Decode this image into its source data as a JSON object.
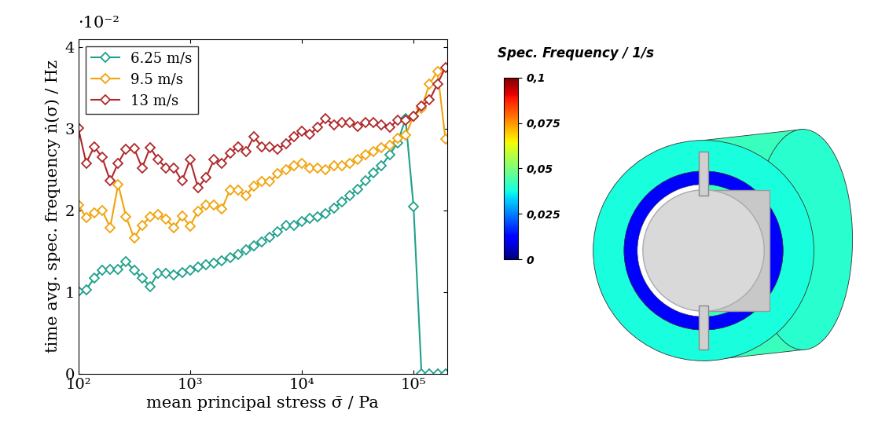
{
  "chart_data": [
    {
      "type": "line",
      "x_label": "mean principal stress σ̄ / Pa",
      "y_label": "time avg. spec. frequency ṅ(σ) / Hz",
      "annotations": [
        "·10⁻²"
      ],
      "log": "x",
      "grid": false,
      "legend": "upper left",
      "xlim": [
        100,
        200000
      ],
      "xticks": [
        {
          "value": 100,
          "label": "10²"
        },
        {
          "value": 1000,
          "label": "10³"
        },
        {
          "value": 10000,
          "label": "10⁴"
        },
        {
          "value": 100000,
          "label": "10⁵"
        }
      ],
      "ylim": [
        0,
        0.041
      ],
      "yticks": [
        0,
        {
          "value": 0.01,
          "label": "1"
        },
        {
          "value": 0.02,
          "label": "2"
        },
        {
          "value": 0.03,
          "label": "3"
        },
        {
          "value": 0.04,
          "label": "4"
        }
      ],
      "x": [
        100,
        117.9,
        138.9,
        163.8,
        193.1,
        227.6,
        268.3,
        316.2,
        372.8,
        439.4,
        518.0,
        610.6,
        719.7,
        848.4,
        1000,
        1179,
        1389,
        1638,
        1931,
        2276,
        2683,
        3162,
        3728,
        4394,
        5180,
        6106,
        7197,
        8484,
        10000,
        11788,
        13895,
        16379,
        19307,
        22758,
        26827,
        31623,
        37276,
        43940,
        51795,
        61054,
        71969,
        84834,
        100000,
        117877,
        138950,
        163789,
        193070
      ],
      "series": [
        {
          "name": "6.25 m/s",
          "color": "#1fa08c",
          "marker": "diamond",
          "line_style": "solid",
          "values": [
            0.0101,
            0.0103,
            0.0117,
            0.0127,
            0.0128,
            0.0128,
            0.0137,
            0.0127,
            0.0117,
            0.0107,
            0.0123,
            0.0123,
            0.0121,
            0.0124,
            0.0127,
            0.0131,
            0.0133,
            0.0135,
            0.0138,
            0.0142,
            0.0146,
            0.0152,
            0.0157,
            0.0161,
            0.0167,
            0.0174,
            0.0182,
            0.0182,
            0.0186,
            0.019,
            0.0192,
            0.0196,
            0.0203,
            0.021,
            0.0218,
            0.0226,
            0.0236,
            0.0246,
            0.0255,
            0.0268,
            0.0283,
            0.0312,
            0.0205,
            0,
            0,
            0,
            0
          ]
        },
        {
          "name": "9.5 m/s",
          "color": "#f0a30a",
          "marker": "diamond",
          "line_style": "solid",
          "values": [
            0.0207,
            0.0191,
            0.0197,
            0.02,
            0.0179,
            0.0232,
            0.0192,
            0.0166,
            0.0182,
            0.0192,
            0.0195,
            0.0189,
            0.0179,
            0.0193,
            0.0181,
            0.0199,
            0.0207,
            0.0207,
            0.0202,
            0.0225,
            0.0225,
            0.0218,
            0.023,
            0.0235,
            0.0235,
            0.0245,
            0.025,
            0.0255,
            0.0258,
            0.0252,
            0.0252,
            0.025,
            0.0255,
            0.0255,
            0.0258,
            0.0262,
            0.0268,
            0.0272,
            0.0277,
            0.028,
            0.0288,
            0.0292,
            0.0315,
            0.0325,
            0.0355,
            0.037,
            0.0287
          ]
        },
        {
          "name": "13 m/s",
          "color": "#b0282a",
          "marker": "diamond",
          "line_style": "solid",
          "values": [
            0.0301,
            0.0258,
            0.0278,
            0.0265,
            0.0236,
            0.0258,
            0.0275,
            0.0276,
            0.0252,
            0.0277,
            0.0262,
            0.0252,
            0.0252,
            0.0236,
            0.0262,
            0.0228,
            0.024,
            0.0262,
            0.0258,
            0.027,
            0.0278,
            0.0272,
            0.029,
            0.0278,
            0.0278,
            0.0275,
            0.0282,
            0.029,
            0.0297,
            0.0293,
            0.0302,
            0.0312,
            0.0305,
            0.0308,
            0.0308,
            0.0303,
            0.0308,
            0.0308,
            0.0305,
            0.0302,
            0.031,
            0.031,
            0.0315,
            0.0328,
            0.0335,
            0.0355,
            0.0375
          ]
        }
      ]
    },
    {
      "type": "colorbar",
      "title": "Spec. Frequency / 1/s",
      "colorbar": {
        "range": [
          0,
          0.1
        ],
        "ticks": [
          0,
          {
            "value": 0.025,
            "label": "0,025"
          },
          {
            "value": 0.05,
            "label": "0,05"
          },
          {
            "value": 0.075,
            "label": "0,075"
          },
          {
            "value": 0.1,
            "label": "0,1"
          }
        ]
      }
    }
  ]
}
